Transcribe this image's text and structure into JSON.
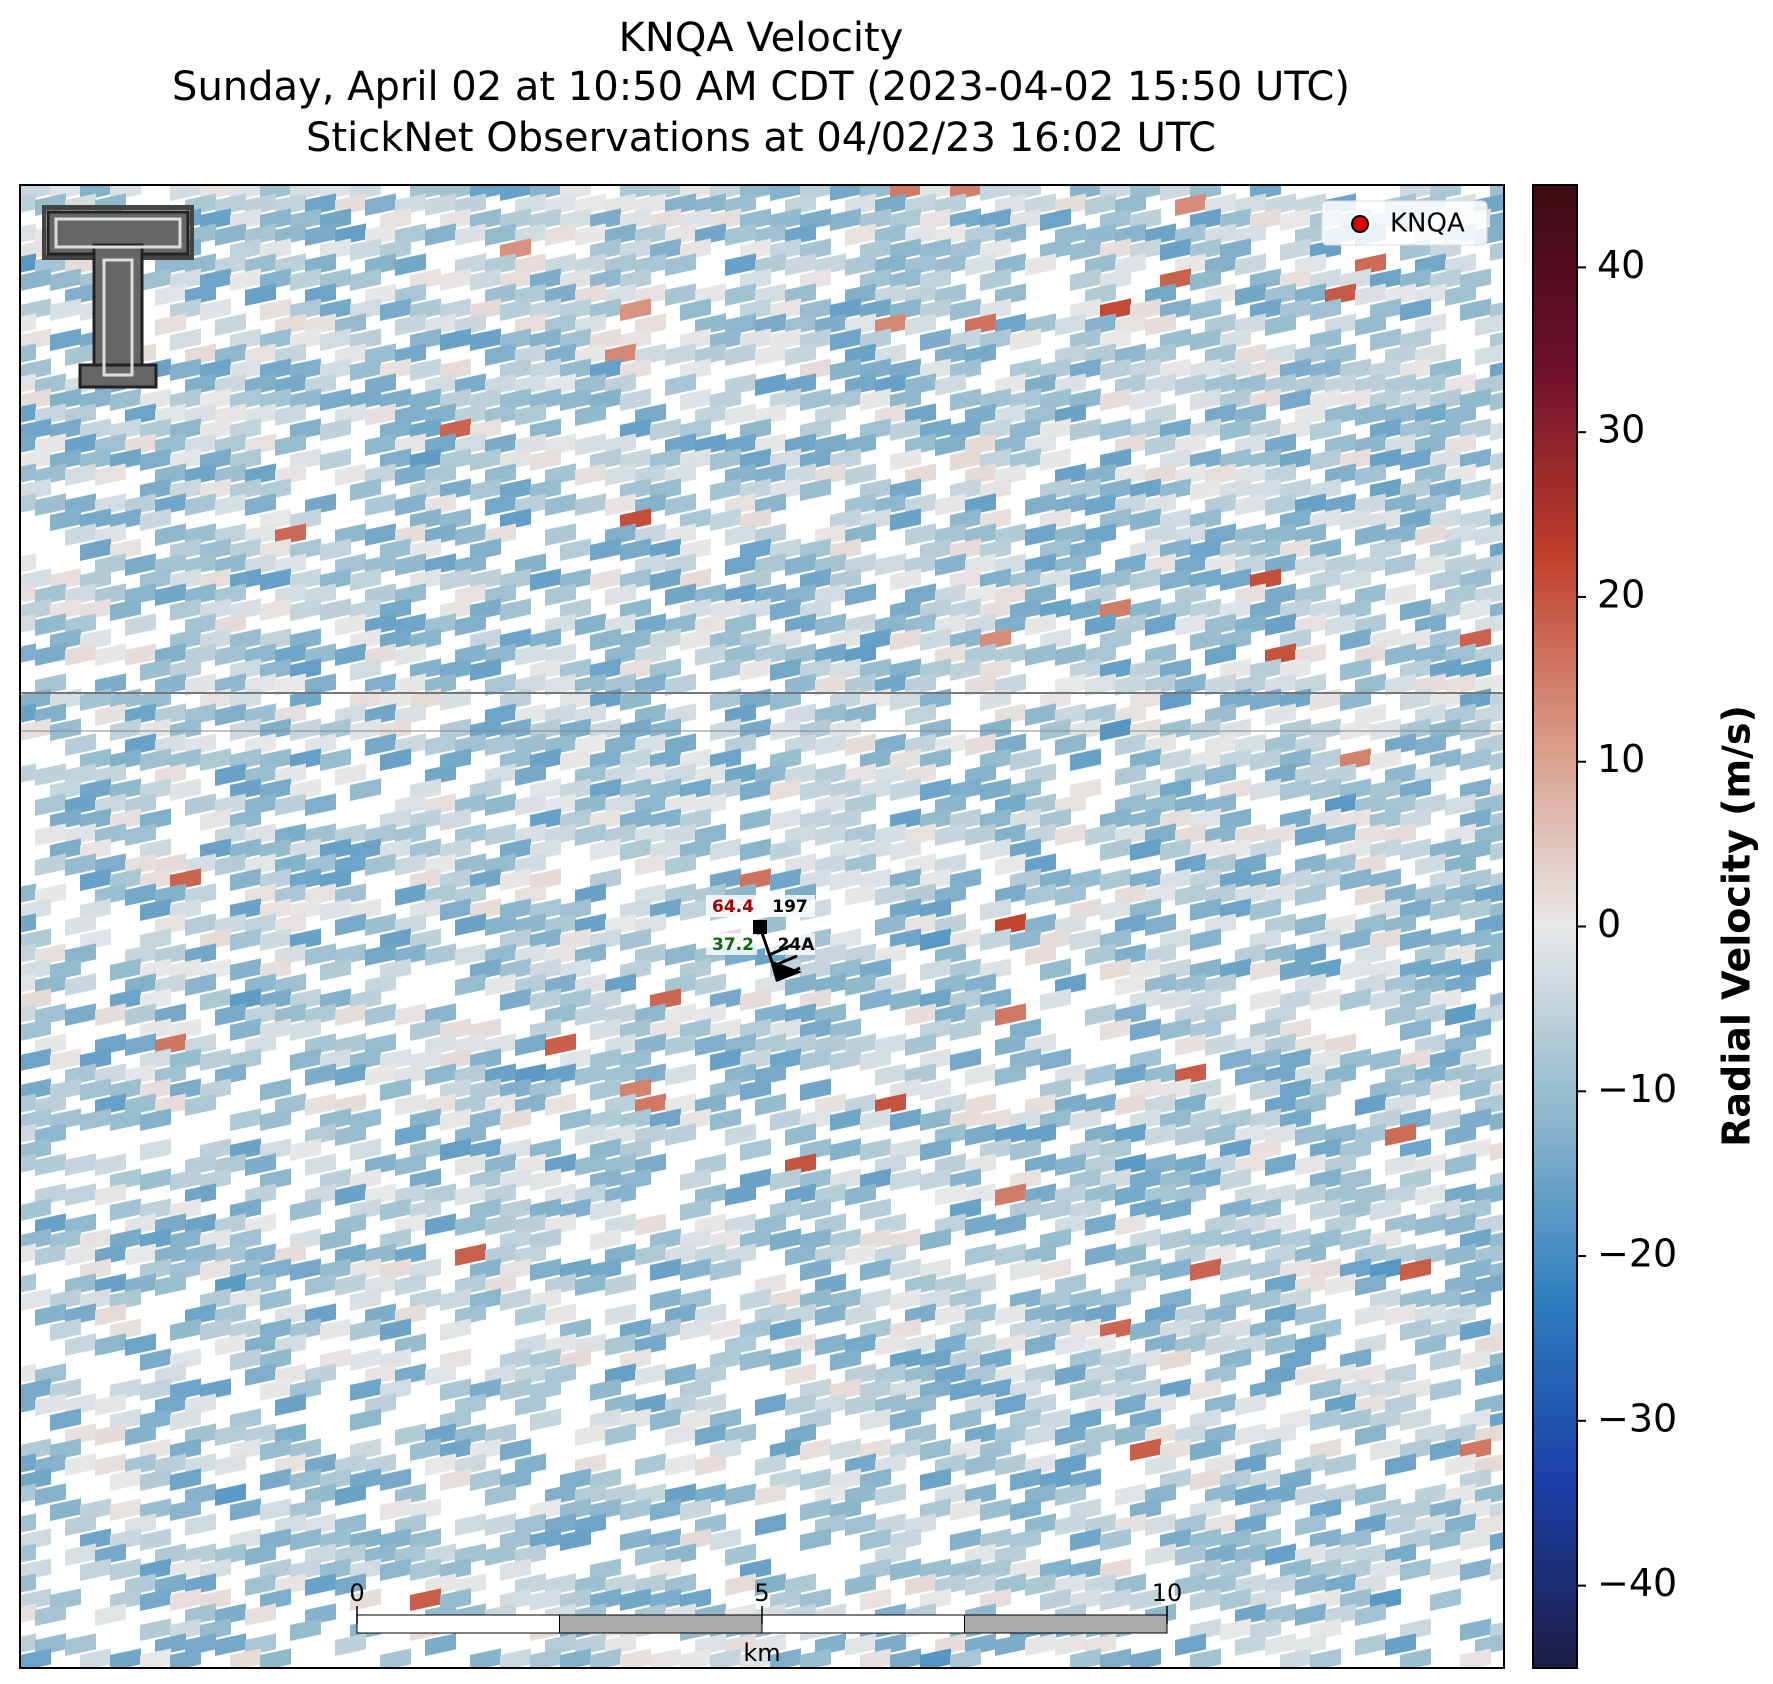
{
  "header": {
    "title": "KNQA Velocity",
    "subtitle": "Sunday, April 02 at 10:50 AM CDT (2023-04-02 15:50 UTC)",
    "observations": "StickNet Observations at 04/02/23 16:02 UTC"
  },
  "colorbar": {
    "label": "Radial Velocity (m/s)",
    "lim": [
      -45,
      45
    ],
    "ticks": [
      {
        "value": -40,
        "label": "−40"
      },
      {
        "value": -30,
        "label": "−30"
      },
      {
        "value": -20,
        "label": "−20"
      },
      {
        "value": -10,
        "label": "−10"
      },
      0,
      10,
      20,
      30,
      40
    ],
    "colors": [
      "#1c1d45",
      "#1a3fa8",
      "#2e7fbf",
      "#8fb8cc",
      "#e8e8e8",
      "#d99a86",
      "#c0402a",
      "#6e0f2c",
      "#3d0b14"
    ]
  },
  "legend": {
    "label": "KNQA",
    "color": "#e00000"
  },
  "station": {
    "temperature": "64.4",
    "dewpoint": "37.2",
    "pressure": "197",
    "id": "24A"
  },
  "scalebar": {
    "lim": [
      0,
      10
    ],
    "ticks": [
      0,
      5,
      10
    ],
    "unit": "km"
  }
}
